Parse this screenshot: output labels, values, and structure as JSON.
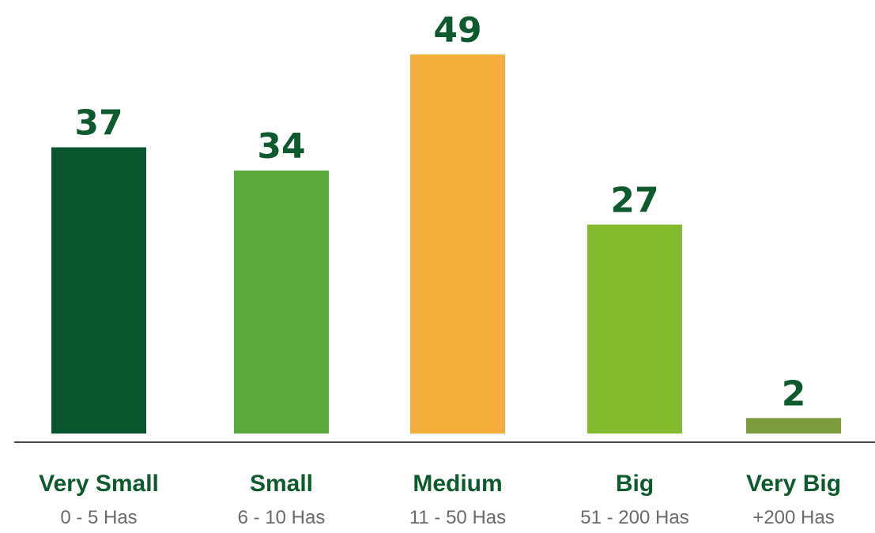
{
  "chart_data": {
    "type": "bar",
    "categories": [
      "Very Small",
      "Small",
      "Medium",
      "Big",
      "Very Big"
    ],
    "ranges": [
      "0 - 5 Has",
      "6 - 10 Has",
      "11 - 50 Has",
      "51 - 200 Has",
      "+200 Has"
    ],
    "values": [
      37,
      34,
      49,
      27,
      2
    ],
    "colors": [
      "#07562e",
      "#5ba83c",
      "#f4ae3c",
      "#84bb2c",
      "#7b9b3c"
    ],
    "axis_color": "#4a4a4a",
    "ylim": [
      0,
      49
    ],
    "grid": false,
    "legend": "none"
  }
}
